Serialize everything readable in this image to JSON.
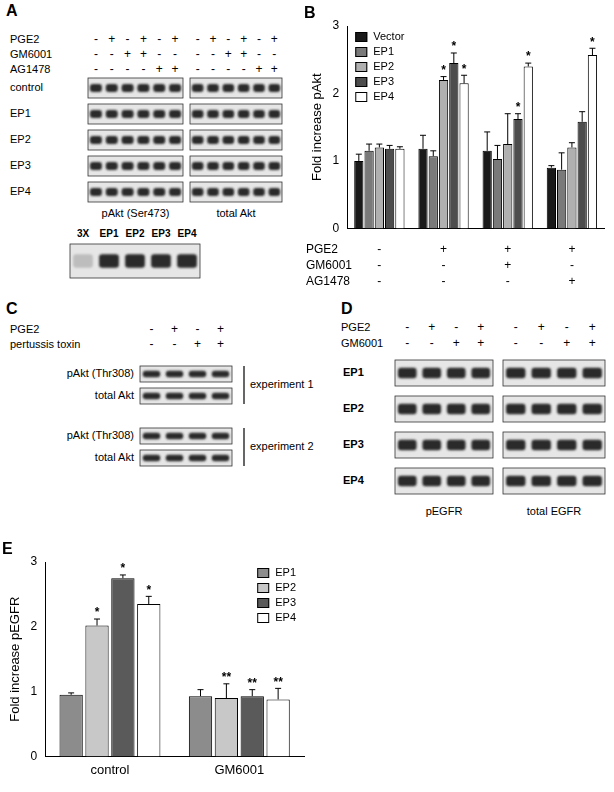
{
  "blot_panels": [
    {
      "panel": "A",
      "conditions": [
        {
          "name": "PGE2",
          "signs": [
            "-",
            "+",
            "-",
            "+",
            "-",
            "+",
            "-",
            "+",
            "-",
            "+",
            "-",
            "+"
          ]
        },
        {
          "name": "GM6001",
          "signs": [
            "-",
            "-",
            "+",
            "+",
            "-",
            "-",
            "-",
            "-",
            "+",
            "+",
            "-",
            "-"
          ]
        },
        {
          "name": "AG1478",
          "signs": [
            "-",
            "-",
            "-",
            "-",
            "+",
            "+",
            "-",
            "-",
            "-",
            "-",
            "+",
            "+"
          ]
        }
      ],
      "rows": [
        "control",
        "EP1",
        "EP2",
        "EP3",
        "EP4"
      ],
      "blots": [
        "pAkt (Ser473)",
        "total Akt"
      ],
      "lower_blot_lanes": [
        "3X",
        "EP1",
        "EP2",
        "EP3",
        "EP4"
      ]
    },
    {
      "panel": "C",
      "conditions": [
        {
          "name": "PGE2",
          "signs": [
            "-",
            "+",
            "-",
            "+"
          ]
        },
        {
          "name": "pertussis toxin",
          "signs": [
            "-",
            "-",
            "+",
            "+"
          ]
        }
      ],
      "experiments": [
        {
          "label": "experiment 1",
          "rows": [
            "pAkt (Thr308)",
            "total Akt"
          ]
        },
        {
          "label": "experiment 2",
          "rows": [
            "pAkt (Thr308)",
            "total Akt"
          ]
        }
      ]
    },
    {
      "panel": "D",
      "conditions": [
        {
          "name": "PGE2",
          "signs": [
            "-",
            "+",
            "-",
            "+",
            "-",
            "+",
            "-",
            "+"
          ]
        },
        {
          "name": "GM6001",
          "signs": [
            "-",
            "-",
            "+",
            "+",
            "-",
            "-",
            "+",
            "+"
          ]
        }
      ],
      "rows": [
        "EP1",
        "EP2",
        "EP3",
        "EP4"
      ],
      "blots": [
        "pEGFR",
        "total EGFR"
      ]
    }
  ],
  "chart_data": [
    {
      "panel": "B",
      "type": "bar",
      "y_label": "Fold increase pAkt",
      "categories": [
        null,
        null,
        null,
        null
      ],
      "conditions": [
        {
          "name": "PGE2",
          "signs": [
            "-",
            "+",
            "+",
            "+"
          ]
        },
        {
          "name": "GM6001",
          "signs": [
            "-",
            "-",
            "+",
            "-"
          ]
        },
        {
          "name": "AG1478",
          "signs": [
            "-",
            "-",
            "-",
            "+"
          ]
        }
      ],
      "series": [
        {
          "name": "Vector",
          "color": "#1a1a1a",
          "values": [
            1.0,
            1.18,
            1.15,
            0.9
          ],
          "errors": [
            0.1,
            0.2,
            0.28,
            0.03
          ],
          "significance": [
            null,
            null,
            null,
            null
          ]
        },
        {
          "name": "EP1",
          "color": "#7a7a7a",
          "values": [
            1.15,
            1.07,
            1.03,
            0.87
          ],
          "errors": [
            0.1,
            0.08,
            0.2,
            0.25
          ],
          "significance": [
            null,
            null,
            null,
            null
          ]
        },
        {
          "name": "EP2",
          "color": "#b0b0b0",
          "values": [
            1.2,
            2.2,
            1.25,
            1.2
          ],
          "errors": [
            0.05,
            0.05,
            0.45,
            0.07
          ],
          "significance": [
            null,
            "*",
            null,
            null
          ]
        },
        {
          "name": "EP3",
          "color": "#4d4d4d",
          "values": [
            1.18,
            2.45,
            1.62,
            1.58
          ],
          "errors": [
            0.05,
            0.15,
            0.08,
            0.15
          ],
          "significance": [
            null,
            "*",
            "*",
            null
          ]
        },
        {
          "name": "EP4",
          "color": "#ffffff",
          "values": [
            1.18,
            2.15,
            2.4,
            2.57
          ],
          "errors": [
            0.03,
            0.12,
            0.05,
            0.1
          ],
          "significance": [
            null,
            "*",
            "*",
            "*"
          ]
        }
      ],
      "ylim": [
        0,
        3
      ],
      "yticks": [
        0,
        1,
        2,
        3
      ],
      "grid": false,
      "legend": "upper left"
    },
    {
      "panel": "E",
      "type": "bar",
      "y_label": "Fold increase pEGFR",
      "categories": [
        "control",
        "GM6001"
      ],
      "series": [
        {
          "name": "EP1",
          "color": "#8c8c8c",
          "values": [
            0.95,
            0.93
          ],
          "errors": [
            0.03,
            0.1
          ],
          "significance": [
            null,
            null
          ]
        },
        {
          "name": "EP2",
          "color": "#c8c8c8",
          "values": [
            2.02,
            0.9
          ],
          "errors": [
            0.1,
            0.22
          ],
          "significance": [
            "*",
            "**"
          ]
        },
        {
          "name": "EP3",
          "color": "#5a5a5a",
          "values": [
            2.75,
            0.93
          ],
          "errors": [
            0.05,
            0.1
          ],
          "significance": [
            "*",
            "**"
          ]
        },
        {
          "name": "EP4",
          "color": "#ffffff",
          "values": [
            2.35,
            0.88
          ],
          "errors": [
            0.12,
            0.17
          ],
          "significance": [
            "*",
            "**"
          ]
        }
      ],
      "ylim": [
        0,
        3
      ],
      "yticks": [
        0,
        1,
        2,
        3
      ],
      "grid": false,
      "legend": "upper right"
    }
  ]
}
